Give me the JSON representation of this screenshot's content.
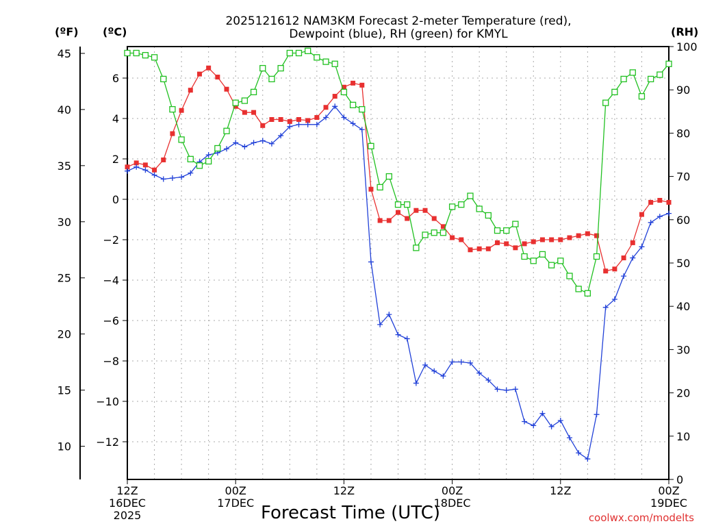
{
  "chart_data": {
    "type": "line",
    "title_line1": "2025121612 NAM3KM Forecast 2-meter Temperature (red),",
    "title_line2": "Dewpoint (blue), RH (green) for KMYL",
    "unit_f": "(ºF)",
    "unit_c": "(ºC)",
    "unit_rh": "(RH)",
    "xlabel": "Forecast Time (UTC)",
    "credit": "coolwx.com/modelts",
    "x_range_hours": [
      0,
      60
    ],
    "ylim_c": [
      -13.7,
      7.6
    ],
    "ylim_rh": [
      0,
      100
    ],
    "yticks_c": [
      6,
      4,
      2,
      0,
      -2,
      -4,
      -6,
      -8,
      -10,
      -12
    ],
    "yticks_c_labels": [
      "6",
      "4",
      "2",
      "0",
      "−2",
      "−4",
      "−6",
      "−8",
      "−10",
      "−12"
    ],
    "yticks_f": [
      45,
      40,
      35,
      30,
      25,
      20,
      15,
      10
    ],
    "yticks_f_labels": [
      "45",
      "40",
      "35",
      "30",
      "25",
      "20",
      "15",
      "10"
    ],
    "yticks_rh": [
      100,
      90,
      80,
      70,
      60,
      50,
      40,
      30,
      20,
      10,
      0
    ],
    "yticks_rh_labels": [
      "100",
      "90",
      "80",
      "70",
      "60",
      "50",
      "40",
      "30",
      "20",
      "10",
      "0"
    ],
    "xticks": [
      {
        "hour": 0,
        "lines": [
          "12Z",
          "16DEC",
          "2025"
        ]
      },
      {
        "hour": 12,
        "lines": [
          "00Z",
          "17DEC"
        ]
      },
      {
        "hour": 24,
        "lines": [
          "12Z"
        ]
      },
      {
        "hour": 36,
        "lines": [
          "00Z",
          "18DEC"
        ]
      },
      {
        "hour": 48,
        "lines": [
          "12Z"
        ]
      },
      {
        "hour": 60,
        "lines": [
          "00Z",
          "19DEC"
        ]
      }
    ],
    "series": [
      {
        "name": "Temperature",
        "unit": "C",
        "color": "#e83030",
        "marker": "filled-square",
        "values": [
          1.6,
          1.8,
          1.7,
          1.45,
          1.95,
          3.25,
          4.4,
          5.4,
          6.2,
          6.5,
          6.05,
          5.45,
          4.6,
          4.3,
          4.3,
          3.65,
          3.95,
          3.95,
          3.85,
          3.95,
          3.9,
          4.05,
          4.55,
          5.1,
          5.55,
          5.75,
          5.65,
          0.5,
          -1.05,
          -1.05,
          -0.65,
          -0.95,
          -0.55,
          -0.55,
          -0.95,
          -1.35,
          -1.9,
          -2.0,
          -2.5,
          -2.45,
          -2.45,
          -2.15,
          -2.2,
          -2.4,
          -2.2,
          -2.1,
          -2.0,
          -2.0,
          -2.0,
          -1.9,
          -1.8,
          -1.7,
          -1.8,
          -3.55,
          -3.45,
          -2.9,
          -2.15,
          -0.75,
          -0.15,
          -0.05,
          -0.15
        ]
      },
      {
        "name": "Dewpoint",
        "unit": "C",
        "color": "#2040d8",
        "marker": "plus",
        "values": [
          1.4,
          1.6,
          1.45,
          1.2,
          1.0,
          1.05,
          1.1,
          1.3,
          1.85,
          2.2,
          2.3,
          2.5,
          2.8,
          2.6,
          2.8,
          2.9,
          2.75,
          3.15,
          3.6,
          3.7,
          3.7,
          3.7,
          4.05,
          4.6,
          4.05,
          3.75,
          3.45,
          -3.1,
          -6.2,
          -5.7,
          -6.7,
          -6.9,
          -9.1,
          -8.2,
          -8.5,
          -8.75,
          -8.05,
          -8.05,
          -8.1,
          -8.6,
          -8.95,
          -9.4,
          -9.45,
          -9.4,
          -11.0,
          -11.2,
          -10.6,
          -11.25,
          -10.95,
          -11.8,
          -12.55,
          -12.85,
          -10.65,
          -5.35,
          -4.95,
          -3.8,
          -2.9,
          -2.35,
          -1.15,
          -0.85,
          -0.7
        ]
      },
      {
        "name": "RH",
        "unit": "percent",
        "color": "#20c020",
        "marker": "open-square",
        "values": [
          98.5,
          98.5,
          98.0,
          97.5,
          92.5,
          85.5,
          78.5,
          74.0,
          72.5,
          73.5,
          76.5,
          80.5,
          87.0,
          87.5,
          89.5,
          95.0,
          92.5,
          95.0,
          98.5,
          98.5,
          99.0,
          97.5,
          96.5,
          96.0,
          89.5,
          86.5,
          85.5,
          77.0,
          67.5,
          70.0,
          63.5,
          63.5,
          53.5,
          56.5,
          57.0,
          57.0,
          63.0,
          63.5,
          65.5,
          62.5,
          61.0,
          57.5,
          57.5,
          59.0,
          51.5,
          50.5,
          52.0,
          49.5,
          50.5,
          47.0,
          44.0,
          43.0,
          51.5,
          87.0,
          89.5,
          92.5,
          94.0,
          88.5,
          92.5,
          93.5,
          96.0
        ]
      }
    ]
  }
}
